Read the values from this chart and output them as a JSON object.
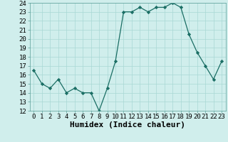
{
  "x": [
    0,
    1,
    2,
    3,
    4,
    5,
    6,
    7,
    8,
    9,
    10,
    11,
    12,
    13,
    14,
    15,
    16,
    17,
    18,
    19,
    20,
    21,
    22,
    23
  ],
  "y": [
    16.5,
    15.0,
    14.5,
    15.5,
    14.0,
    14.5,
    14.0,
    14.0,
    12.0,
    14.5,
    17.5,
    23.0,
    23.0,
    23.5,
    23.0,
    23.5,
    23.5,
    24.0,
    23.5,
    20.5,
    18.5,
    17.0,
    15.5,
    17.5
  ],
  "xlabel": "Humidex (Indice chaleur)",
  "ylim": [
    12,
    24
  ],
  "xlim": [
    -0.5,
    23.5
  ],
  "yticks": [
    12,
    13,
    14,
    15,
    16,
    17,
    18,
    19,
    20,
    21,
    22,
    23,
    24
  ],
  "xticks": [
    0,
    1,
    2,
    3,
    4,
    5,
    6,
    7,
    8,
    9,
    10,
    11,
    12,
    13,
    14,
    15,
    16,
    17,
    18,
    19,
    20,
    21,
    22,
    23
  ],
  "line_color": "#1a6e64",
  "marker_color": "#1a6e64",
  "bg_color": "#d0eeec",
  "grid_color": "#a8d8d4",
  "xlabel_fontsize": 8,
  "tick_fontsize": 6.5
}
